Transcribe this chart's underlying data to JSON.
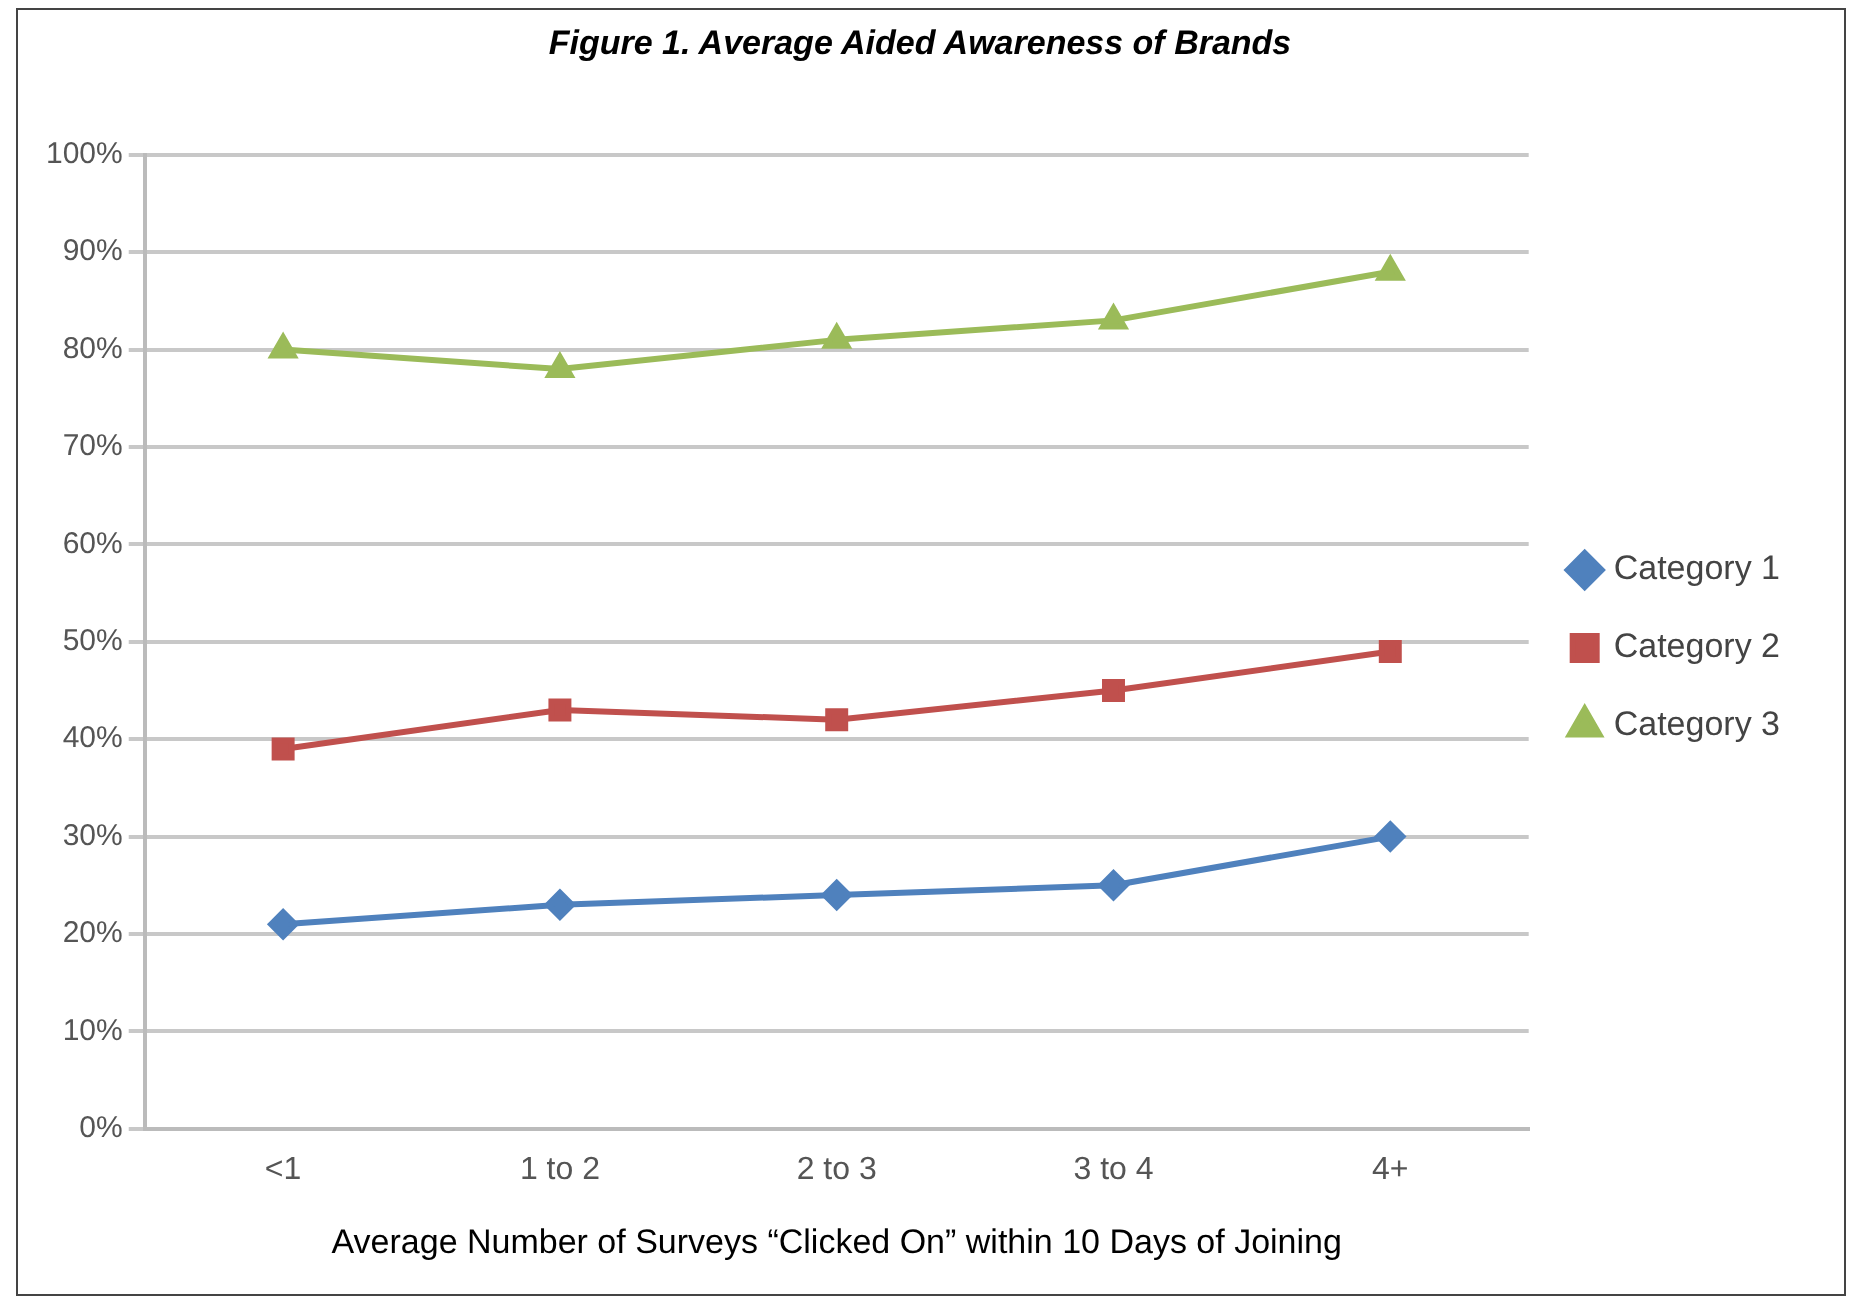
{
  "chart_data": {
    "type": "line",
    "title": "Figure 1. Average Aided Awareness of Brands",
    "xlabel": "Average Number of Surveys “Clicked On” within 10 Days of Joining",
    "categories": [
      "<1",
      "1 to 2",
      "2 to 3",
      "3 to 4",
      "4+"
    ],
    "series": [
      {
        "name": "Category 1",
        "color": "#4f81bd",
        "marker": "diamond",
        "values": [
          21,
          23,
          24,
          25,
          30
        ]
      },
      {
        "name": "Category 2",
        "color": "#c0504d",
        "marker": "square",
        "values": [
          39,
          43,
          42,
          45,
          49
        ]
      },
      {
        "name": "Category 3",
        "color": "#9bbb59",
        "marker": "triangle",
        "values": [
          80,
          78,
          81,
          83,
          88
        ]
      }
    ],
    "ylim": [
      0,
      100
    ],
    "yticks": [
      {
        "value": 0,
        "label": "0%"
      },
      {
        "value": 10,
        "label": "10%"
      },
      {
        "value": 20,
        "label": "20%"
      },
      {
        "value": 30,
        "label": "30%"
      },
      {
        "value": 40,
        "label": "40%"
      },
      {
        "value": 50,
        "label": "50%"
      },
      {
        "value": 60,
        "label": "60%"
      },
      {
        "value": 70,
        "label": "70%"
      },
      {
        "value": 80,
        "label": "80%"
      },
      {
        "value": 90,
        "label": "90%"
      },
      {
        "value": 100,
        "label": "100%"
      }
    ],
    "grid": "y",
    "legend": "right",
    "line_style": "solid"
  }
}
